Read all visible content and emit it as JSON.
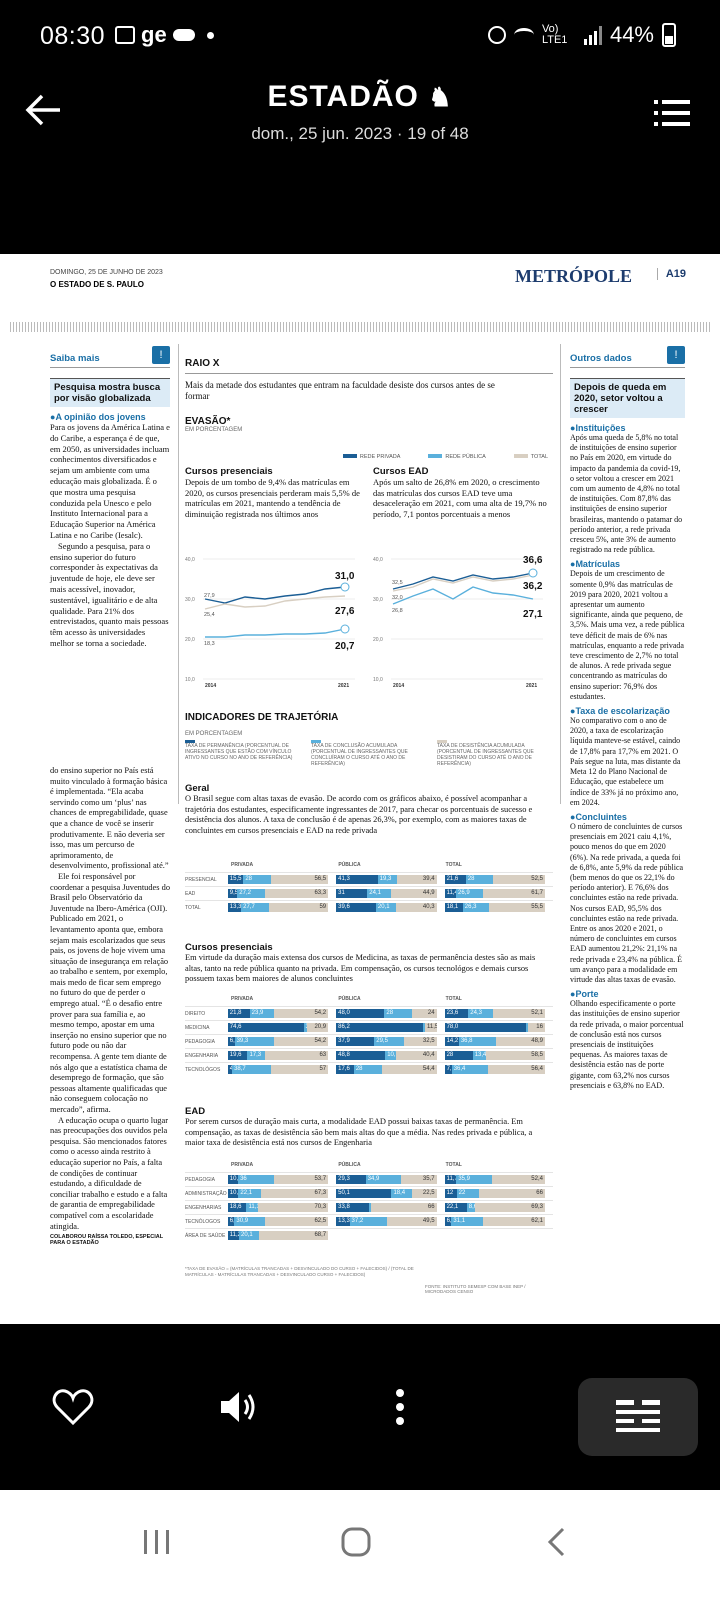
{
  "status_bar": {
    "time": "08:30",
    "carrier": "ge",
    "network": "Vo) LTE1",
    "battery": "44%"
  },
  "appbar": {
    "title": "ESTADÃO",
    "subtitle": "dom., 25 jun. 2023 · 19 of 48"
  },
  "page": {
    "date": "DOMINGO, 25 DE JUNHO DE 2023",
    "paper": "O ESTADO DE S. PAULO",
    "section": "METRÓPOLE",
    "page_number": "A19"
  },
  "left_col": {
    "kicker": "Saiba mais",
    "headline": "Pesquisa mostra busca por visão globalizada",
    "bullet": "A opinião dos jovens",
    "p1": "Para os jovens da América Latina e do Caribe, a esperança é de que, em 2050, as universidades incluam conhecimentos diversificados e sejam um ambiente com uma educação mais globalizada. É o que mostra uma pesquisa conduzida pela Unesco e pelo Instituto Internacional para a Educação Superior na América Latina e no Caribe (Iesalc).",
    "p2": "Segundo a pesquisa, para o ensino superior do futuro corresponder às expectativas da juventude de hoje, ele deve ser mais acessível, inovador, sustentável, igualitário e de alta qualidade. Para 21% dos entrevistados, quanto mais pessoas têm acesso às universidades melhor se torna a sociedade.",
    "cont1": "do ensino superior no País está muito vinculado à formação básica é implementada. “Ela acaba servindo como um ‘plus’ nas chances de empregabilidade, quase que a chance de você se inserir produtivamente. E não deveria ser isso, mas um percurso de aprimoramento, de desenvolvimento, profissional até.”",
    "cont2": "Ele foi responsável por coordenar a pesquisa Juventudes do Brasil pelo Observatório da Juventude na Ibero-América (OJI). Publicado em 2021, o levantamento aponta que, embora sejam mais escolarizados que seus pais, os jovens de hoje vivem uma situação de insegurança em relação ao trabalho e sentem, por exemplo, mais medo de ficar sem emprego no futuro do que de perder o emprego atual. “É o desafio entre prover para sua família e, ao mesmo tempo, apostar em uma inserção no ensino superior que no futuro pode ou não dar recompensa. A gente tem diante de nós algo que a estatística chama de desemprego de formação, que são pessoas altamente qualificadas que não conseguem colocação no mercado”, afirma.",
    "cont3": "A educação ocupa o quarto lugar nas preocupações dos ouvidos pela pesquisa. São mencionados fatores como o acesso ainda restrito à educação superior no País, a falta de condições de continuar estudando, a dificuldade de conciliar trabalho e estudo e a falta de garantia de empregabilidade compatível com a escolaridade atingida.",
    "credit": "COLABOROU RAÍSSA TOLEDO, ESPECIAL PARA O ESTADÃO"
  },
  "center": {
    "kicker": "RAIO X",
    "intro": "Mais da metade dos estudantes que entram na faculdade desiste dos cursos antes de se formar",
    "evasao_title": "EVASÃO*",
    "evasao_unit": "EM PORCENTAGEM",
    "legend": [
      "REDE PRIVADA",
      "REDE PÚBLICA",
      "TOTAL"
    ],
    "presenciais_title": "Cursos presenciais",
    "presenciais_text": "Depois de um tombo de 9,4% das matrículas em 2020, os cursos presenciais perderam mais 5,5% de matrículas em 2021, mantendo a tendência de diminuição registrada nos últimos anos",
    "ead_title": "Cursos EAD",
    "ead_text": "Após um salto de 26,8% em 2020, o crescimento das matrículas dos cursos EAD teve uma desaceleração em 2021, com uma alta de 19,7% no período, 7,1 pontos porcentuais a menos",
    "ind_title": "INDICADORES DE TRAJETÓRIA",
    "ind_unit": "EM PORCENTAGEM",
    "ind_legend": [
      "TAXA DE PERMANÊNCIA (PORCENTUAL DE INGRESSANTES QUE ESTÃO COM VÍNCULO ATIVO NO CURSO NO ANO DE REFERÊNCIA)",
      "TAXA DE CONCLUSÃO ACUMULADA (PORCENTUAL DE INGRESSANTES QUE CONCLUÍRAM O CURSO ATÉ O ANO DE REFERÊNCIA)",
      "TAXA DE DESISTÊNCIA ACUMULADA (PORCENTUAL DE INGRESSANTES QUE DESISTIRAM DO CURSO ATÉ O ANO DE REFERÊNCIA)"
    ],
    "geral_title": "Geral",
    "geral_text": "O Brasil segue com altas taxas de evasão. De acordo com os gráficos abaixo, é possível acompanhar a trajetória dos estudantes, especificamente ingressantes de 2017, para checar os porcentuais de sucesso e desistência dos alunos. A taxa de conclusão é de apenas 26,3%, por exemplo, com as maiores taxas de concluintes em cursos presenciais e EAD na rede privada",
    "cp_title": "Cursos presenciais",
    "cp_text": "Em virtude da duração mais extensa dos cursos de Medicina, as taxas de permanência destes são as mais altas, tanto na rede pública quanto na privada. Em compensação, os cursos tecnológos e demais cursos possuem taxas bem maiores de alunos concluintes",
    "ead2_title": "EAD",
    "ead2_text": "Por serem cursos de duração mais curta, a modalidade EAD possui baixas taxas de permanência. Em compensação, as taxas de desistência são bem mais altas do que a média. Nas redes privada e pública, a maior taxa de desistência está nos cursos de Engenharia",
    "group_headers": [
      "PRIVADA",
      "PÚBLICA",
      "TOTAL"
    ],
    "footnote": "*TAXA DE EVASÃO = (MATRÍCULAS TRANCADAS + DESVINCULADO DO CURSO + FALECIDOS) / (TOTAL DE MATRÍCULAS - MATRÍCULAS TRANCADAS + DESVINCULADO CURSO + FALECIDOS)",
    "source": "FONTE: INSTITUTO SEMESP COM BASE INEP / MICRODADOS CENSO"
  },
  "right_col": {
    "kicker": "Outros dados",
    "headline": "Depois de queda em 2020, setor voltou a crescer",
    "b1_title": "Instituições",
    "b1_text": "Após uma queda de 5,8% no total de instituições de ensino superior no País em 2020, em virtude do impacto da pandemia da covid-19, o setor voltou a crescer em 2021 com um aumento de 4,8% no total de instituições. Com 87,8% das instituições de ensino superior brasileiras, mantendo o patamar do período anterior, a rede privada cresceu 5%, ante 3% de aumento registrado na rede pública.",
    "b2_title": "Matrículas",
    "b2_text": "Depois de um crescimento de somente 0,9% das matrículas de 2019 para 2020, 2021 voltou a apresentar um aumento significante, ainda que pequeno, de 3,5%. Mais uma vez, a rede pública teve déficit de mais de 6% nas matrículas, enquanto a rede privada teve crescimento de 2,7% no total de alunos. A rede privada segue concentrando as matrículas do ensino superior: 76,9% dos estudantes.",
    "b3_title": "Taxa de escolarização",
    "b3_text": "No comparativo com o ano de 2020, a taxa de escolarização líquida manteve-se estável, caindo de 17,8% para 17,7% em 2021. O País segue na luta, mas distante da Meta 12 do Plano Nacional de Educação, que estabelece um índice de 33% já no próximo ano, em 2024.",
    "b4_title": "Concluintes",
    "b4_text": "O número de concluintes de cursos presenciais em 2021 caiu 4,1%, pouco menos do que em 2020 (6%). Na rede privada, a queda foi de 6,8%, ante 5,9% da rede pública (bem menos do que os 22,1% do período anterior). E 76,6% dos concluintes estão na rede privada. Nos cursos EAD, 95,5% dos concluintes estão na rede privada. Entre os anos 2020 e 2021, o número de concluintes em cursos EAD aumentou 21,2%: 21,1% na rede privada e 23,4% na pública. É um avanço para a modalidade em virtude das altas taxas de evasão.",
    "b5_title": "Porte",
    "b5_text": "Olhando especificamente o porte das instituições de ensino superior da rede privada, o maior porcentual de conclusão está nos cursos presenciais de instituições pequenas. As maiores taxas de desistência estão nas de porte gigante, com 63,2% nos cursos presenciais e 63,8% no EAD."
  },
  "line_chart_presenciais": {
    "y_ticks": [
      "40,0",
      "30,0",
      "20,0",
      "10,0"
    ],
    "x_ticks": [
      "2014",
      "2021"
    ],
    "start_labels": [
      "27,9",
      "25,4",
      "18,3"
    ],
    "end_labels": [
      "31,0",
      "27,6",
      "20,7"
    ]
  },
  "line_chart_ead": {
    "y_ticks": [
      "40,0",
      "30,0",
      "20,0",
      "10,0"
    ],
    "x_ticks": [
      "2014",
      "2021"
    ],
    "start_labels": [
      "32,5",
      "32,0",
      "26,8"
    ],
    "end_labels": [
      "36,6",
      "36,2",
      "27,1"
    ]
  },
  "geral_rows": [
    {
      "label": "PRESENCIAL",
      "priv": [
        "15,5",
        "28",
        "56,5"
      ],
      "pub": [
        "41,3",
        "19,3",
        "39,4"
      ],
      "tot": [
        "21,6",
        "28",
        "52,5"
      ]
    },
    {
      "label": "EAD",
      "priv": [
        "9,5",
        "27,2",
        "63,3"
      ],
      "pub": [
        "31",
        "24,1",
        "44,9"
      ],
      "tot": [
        "11,4",
        "26,9",
        "61,7"
      ]
    },
    {
      "label": "TOTAL",
      "priv": [
        "13,3",
        "27,7",
        "59"
      ],
      "pub": [
        "39,6",
        "20,1",
        "40,3"
      ],
      "tot": [
        "18,1",
        "26,3",
        "55,5"
      ]
    }
  ],
  "cp_rows": [
    {
      "label": "DIREITO",
      "priv": [
        "21,8",
        "23,9",
        "54,2"
      ],
      "pub": [
        "48,0",
        "28",
        "24"
      ],
      "tot": [
        "23,6",
        "24,3",
        "52,1"
      ]
    },
    {
      "label": "MEDICINA",
      "priv": [
        "74,6",
        "3,4",
        "20,9"
      ],
      "pub": [
        "86,2",
        "2,2",
        "11,5"
      ],
      "tot": [
        "78,0",
        "",
        "16"
      ]
    },
    {
      "label": "PEDAGOGIA",
      "priv": [
        "6,8",
        "39,3",
        "54,2"
      ],
      "pub": [
        "37,9",
        "29,5",
        "32,5"
      ],
      "tot": [
        "14,2",
        "36,8",
        "48,9"
      ]
    },
    {
      "label": "ENGENHARIA",
      "priv": [
        "19,6",
        "17,3",
        "63"
      ],
      "pub": [
        "48,8",
        "10,7",
        "40,4"
      ],
      "tot": [
        "28",
        "13,4",
        "58,5"
      ]
    },
    {
      "label": "TECNOLÓGOS",
      "priv": [
        "4,3",
        "38,7",
        "57"
      ],
      "pub": [
        "17,6",
        "28",
        "54,4"
      ],
      "tot": [
        "7,1",
        "36,4",
        "56,4"
      ]
    }
  ],
  "ead_rows": [
    {
      "label": "PEDAGOGIA",
      "priv": [
        "10,3",
        "36",
        "53,7"
      ],
      "pub": [
        "29,3",
        "34,9",
        "35,7"
      ],
      "tot": [
        "11,7",
        "35,9",
        "52,4"
      ]
    },
    {
      "label": "ADMINISTRAÇÃO",
      "priv": [
        "10,6",
        "22,1",
        "67,3"
      ],
      "pub": [
        "50,1",
        "18,4",
        "22,5"
      ],
      "tot": [
        "12",
        "22",
        "66"
      ]
    },
    {
      "label": "ENGENHARIAS",
      "priv": [
        "18,6",
        "11,1",
        "70,3"
      ],
      "pub": [
        "33,8",
        "0,2",
        "66"
      ],
      "tot": [
        "22,1",
        "8,6",
        "69,3"
      ]
    },
    {
      "label": "TECNÓLOGOS",
      "priv": [
        "6,6",
        "30,9",
        "62,5"
      ],
      "pub": [
        "13,3",
        "37,2",
        "49,5"
      ],
      "tot": [
        "6,8",
        "31,1",
        "62,1"
      ]
    },
    {
      "label": "ÁREA DE SAÚDE",
      "priv": [
        "11,2",
        "20,1",
        "68,7"
      ],
      "pub": null,
      "tot": null
    }
  ],
  "colors": {
    "priv": "#1b5e95",
    "pub": "#5ab0dc",
    "total": "#d8cfc2",
    "accent": "#1a6fa6"
  }
}
